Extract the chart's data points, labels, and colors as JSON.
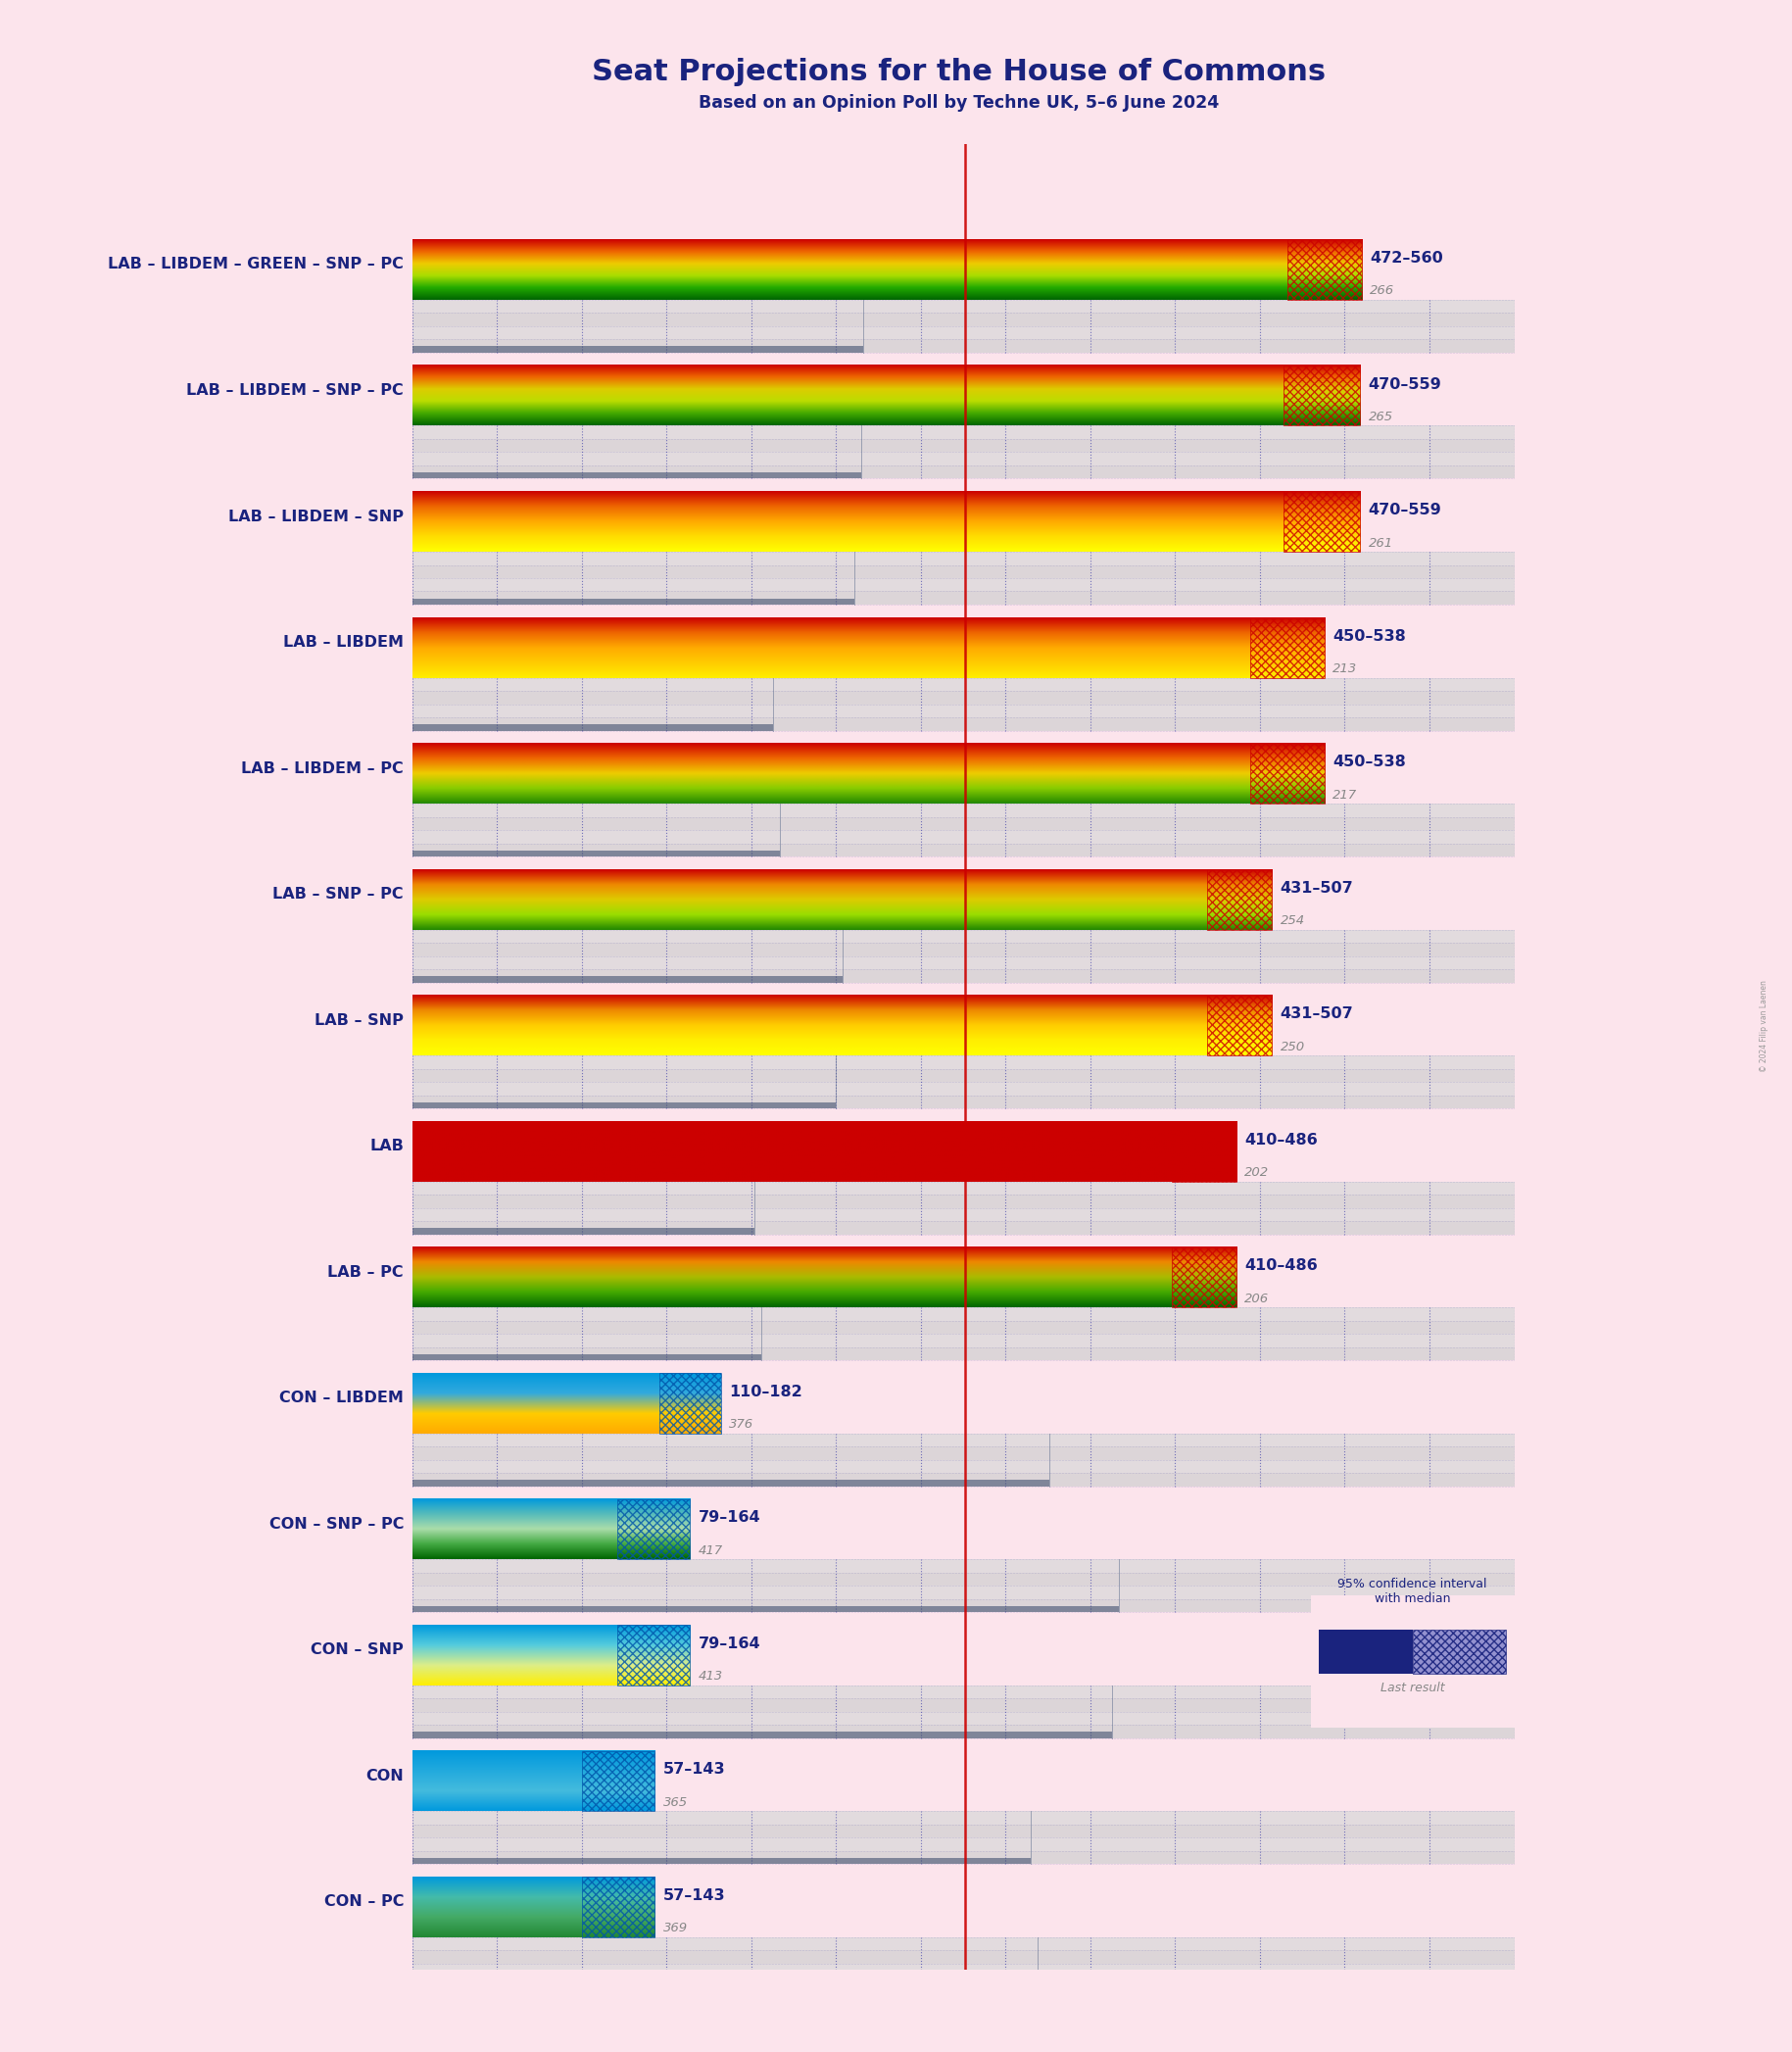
{
  "title": "Seat Projections for the House of Commons",
  "subtitle": "Based on an Opinion Poll by Techne UK, 5–6 June 2024",
  "copyright": "© 2024 Filip van Laenen",
  "background_color": "#fce4ec",
  "title_color": "#1a237e",
  "subtitle_color": "#1a237e",
  "total_seats": 650,
  "majority": 326,
  "coalitions": [
    {
      "name": "LAB – LIBDEM – GREEN – SNP – PC",
      "low": 472,
      "high": 560,
      "median": 516,
      "last_result": 266,
      "grad_colors": [
        "#cc0000",
        "#ee6600",
        "#eecc00",
        "#aadd00",
        "#22aa00",
        "#006600"
      ],
      "hatch_color": "#cc0000",
      "is_lab": true
    },
    {
      "name": "LAB – LIBDEM – SNP – PC",
      "low": 470,
      "high": 559,
      "median": 514,
      "last_result": 265,
      "grad_colors": [
        "#cc0000",
        "#ee6600",
        "#ddcc00",
        "#bbdd00",
        "#44aa00",
        "#006600"
      ],
      "hatch_color": "#cc0000",
      "is_lab": true
    },
    {
      "name": "LAB – LIBDEM – SNP",
      "low": 470,
      "high": 559,
      "median": 514,
      "last_result": 261,
      "grad_colors": [
        "#cc0000",
        "#ee6600",
        "#ffaa00",
        "#ffdd00",
        "#ffff00"
      ],
      "hatch_color": "#cc0000",
      "is_lab": true
    },
    {
      "name": "LAB – LIBDEM",
      "low": 450,
      "high": 538,
      "median": 494,
      "last_result": 213,
      "grad_colors": [
        "#cc0000",
        "#ee6600",
        "#ffaa00",
        "#ffcc00",
        "#ffee00"
      ],
      "hatch_color": "#cc0000",
      "is_lab": true
    },
    {
      "name": "LAB – LIBDEM – PC",
      "low": 450,
      "high": 538,
      "median": 494,
      "last_result": 217,
      "grad_colors": [
        "#cc0000",
        "#ee6600",
        "#eecc00",
        "#88cc00",
        "#228800"
      ],
      "hatch_color": "#cc0000",
      "is_lab": true
    },
    {
      "name": "LAB – SNP – PC",
      "low": 431,
      "high": 507,
      "median": 469,
      "last_result": 254,
      "grad_colors": [
        "#cc0000",
        "#ee8800",
        "#ddcc00",
        "#99dd00",
        "#228800"
      ],
      "hatch_color": "#cc0000",
      "is_lab": true
    },
    {
      "name": "LAB – SNP",
      "low": 431,
      "high": 507,
      "median": 469,
      "last_result": 250,
      "grad_colors": [
        "#cc0000",
        "#ee8800",
        "#ffcc00",
        "#ffee00",
        "#ffff00"
      ],
      "hatch_color": "#cc0000",
      "is_lab": true
    },
    {
      "name": "LAB",
      "low": 410,
      "high": 486,
      "median": 448,
      "last_result": 202,
      "grad_colors": [
        "#cc0000",
        "#cc0000",
        "#cc0000",
        "#cc0000"
      ],
      "hatch_color": "#cc0000",
      "is_lab": true
    },
    {
      "name": "LAB – PC",
      "low": 410,
      "high": 486,
      "median": 448,
      "last_result": 206,
      "grad_colors": [
        "#cc0000",
        "#ee8800",
        "#aabb00",
        "#44aa00",
        "#006600"
      ],
      "hatch_color": "#cc0000",
      "is_lab": true
    },
    {
      "name": "CON – LIBDEM",
      "low": 110,
      "high": 182,
      "median": 146,
      "last_result": 376,
      "grad_colors": [
        "#0099dd",
        "#33aadd",
        "#ffcc00",
        "#ffaa00"
      ],
      "hatch_color": "#0055aa",
      "is_lab": false
    },
    {
      "name": "CON – SNP – PC",
      "low": 79,
      "high": 164,
      "median": 121,
      "last_result": 417,
      "grad_colors": [
        "#0099dd",
        "#55bbbb",
        "#aaddaa",
        "#44aa44",
        "#006600"
      ],
      "hatch_color": "#0055aa",
      "is_lab": false
    },
    {
      "name": "CON – SNP",
      "low": 79,
      "high": 164,
      "median": 121,
      "last_result": 413,
      "grad_colors": [
        "#0099dd",
        "#55ccdd",
        "#ddee88",
        "#ffee00"
      ],
      "hatch_color": "#0055aa",
      "is_lab": false
    },
    {
      "name": "CON",
      "low": 57,
      "high": 143,
      "median": 100,
      "last_result": 365,
      "grad_colors": [
        "#0099dd",
        "#22aadd",
        "#44bbdd",
        "#0099dd"
      ],
      "hatch_color": "#0055aa",
      "is_lab": false
    },
    {
      "name": "CON – PC",
      "low": 57,
      "high": 143,
      "median": 100,
      "last_result": 369,
      "grad_colors": [
        "#0099dd",
        "#44bbaa",
        "#44aa66",
        "#228833"
      ],
      "hatch_color": "#0055aa",
      "is_lab": false
    }
  ]
}
